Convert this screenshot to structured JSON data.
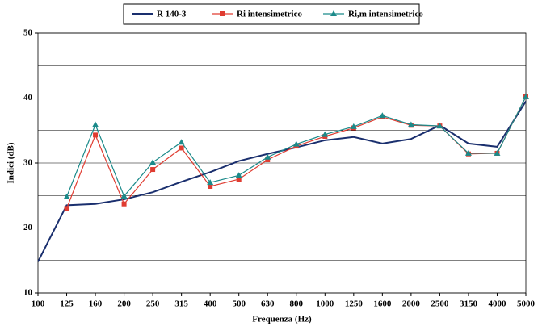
{
  "chart_data": {
    "type": "line",
    "xlabel": "Frequenza (Hz)",
    "ylabel": "Indici (dB)",
    "categories": [
      "100",
      "125",
      "160",
      "200",
      "250",
      "315",
      "400",
      "500",
      "630",
      "800",
      "1000",
      "1250",
      "1600",
      "2000",
      "2500",
      "3150",
      "4000",
      "5000"
    ],
    "series": [
      {
        "name": "R 140-3",
        "color": "#1a2f6e",
        "marker": "none",
        "values": [
          14.8,
          23.5,
          23.7,
          24.4,
          25.5,
          27.1,
          28.6,
          30.3,
          31.4,
          32.4,
          33.5,
          34.0,
          33.0,
          33.7,
          35.8,
          33.0,
          32.5,
          39.5
        ]
      },
      {
        "name": "Ri intensimetrico",
        "color": "#e03c31",
        "marker": "square",
        "values": [
          null,
          23.0,
          34.3,
          23.7,
          29.0,
          32.3,
          26.4,
          27.5,
          30.5,
          32.6,
          34.1,
          35.4,
          37.1,
          35.8,
          35.7,
          31.4,
          31.5,
          40.2
        ]
      },
      {
        "name": "Ri,m intensimetrico",
        "color": "#1b8a8a",
        "marker": "triangle",
        "values": [
          null,
          24.8,
          35.9,
          24.9,
          30.1,
          33.2,
          27.0,
          28.1,
          30.9,
          32.9,
          34.4,
          35.6,
          37.3,
          35.9,
          35.7,
          31.5,
          31.5,
          40.2
        ]
      }
    ],
    "ylim": [
      10,
      50
    ],
    "yticks": [
      10,
      20,
      30,
      40,
      50
    ],
    "grid": true,
    "minor_grid": true,
    "legend": "top"
  }
}
